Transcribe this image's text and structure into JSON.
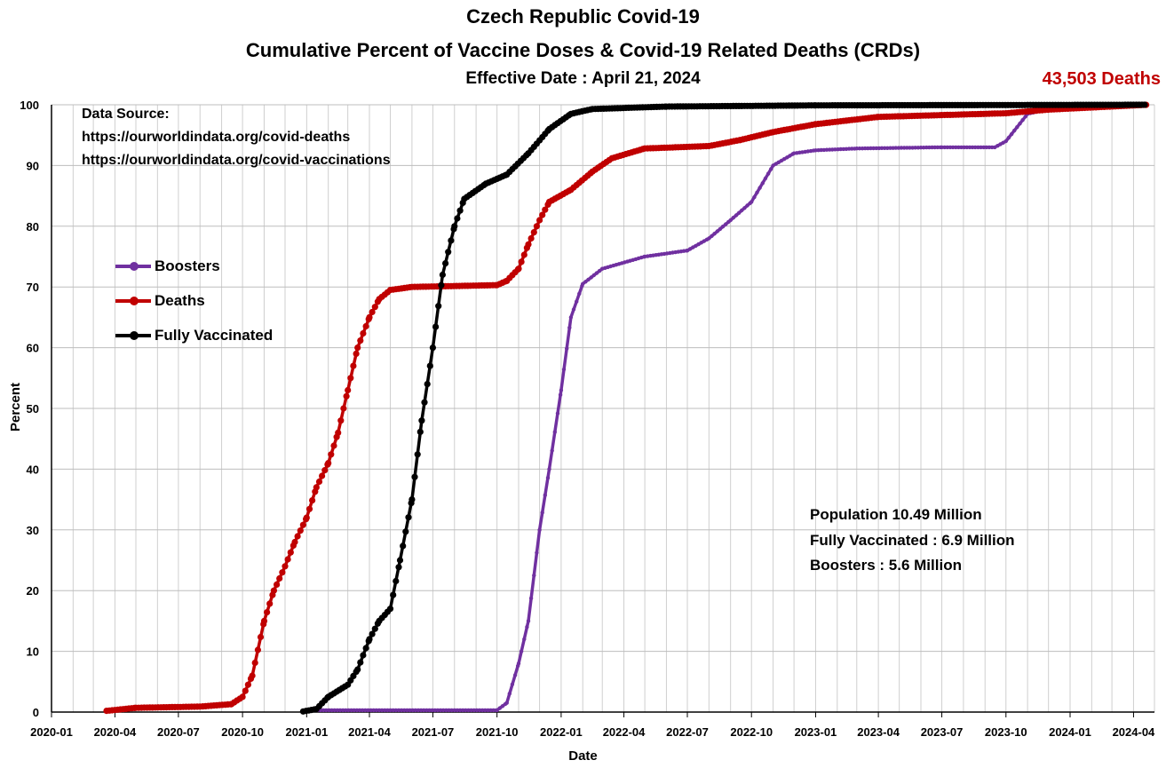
{
  "header": {
    "title_line1": "Czech Republic Covid-19",
    "title_line2": "Cumulative Percent of Vaccine Doses & Covid-19 Related Deaths (CRDs)",
    "title_line3": "Effective Date : April 21, 2024",
    "deaths_total": "43,503 Deaths"
  },
  "source": {
    "heading": "Data Source:",
    "url1": "https://ourworldindata.org/covid-deaths",
    "url2": "https://ourworldindata.org/covid-vaccinations"
  },
  "stats": {
    "population": "Population  10.49 Million",
    "fully_vaccinated": "Fully Vaccinated : 6.9 Million",
    "boosters": "Boosters : 5.6 Million"
  },
  "chart_data": {
    "type": "line",
    "xlabel": "Date",
    "ylabel": "Percent",
    "ylim": [
      0,
      100
    ],
    "yticks": [
      0,
      10,
      20,
      30,
      40,
      50,
      60,
      70,
      80,
      90,
      100
    ],
    "xlim": [
      "2020-01",
      "2024-04"
    ],
    "xticks": [
      "2020-01",
      "2020-04",
      "2020-07",
      "2020-10",
      "2021-01",
      "2021-04",
      "2021-07",
      "2021-10",
      "2022-01",
      "2022-04",
      "2022-07",
      "2022-10",
      "2023-01",
      "2023-04",
      "2023-07",
      "2023-10",
      "2024-01",
      "2024-04"
    ],
    "grid": true,
    "legend_position": "left-center",
    "series": [
      {
        "name": "Boosters",
        "color": "#7030a0",
        "points": [
          [
            "2021-01-01",
            0.3
          ],
          [
            "2021-10-01",
            0.3
          ],
          [
            "2021-10-15",
            1.5
          ],
          [
            "2021-11-01",
            8
          ],
          [
            "2021-11-15",
            15
          ],
          [
            "2021-12-01",
            30
          ],
          [
            "2021-12-15",
            40
          ],
          [
            "2022-01-01",
            53
          ],
          [
            "2022-01-15",
            65
          ],
          [
            "2022-02-01",
            70.5
          ],
          [
            "2022-03-01",
            73
          ],
          [
            "2022-05-01",
            75
          ],
          [
            "2022-07-01",
            76
          ],
          [
            "2022-08-01",
            78
          ],
          [
            "2022-09-01",
            81
          ],
          [
            "2022-10-01",
            84
          ],
          [
            "2022-11-01",
            90
          ],
          [
            "2022-12-01",
            92
          ],
          [
            "2023-01-01",
            92.5
          ],
          [
            "2023-03-01",
            92.8
          ],
          [
            "2023-07-01",
            93
          ],
          [
            "2023-09-15",
            93
          ],
          [
            "2023-10-01",
            94
          ],
          [
            "2023-11-01",
            98.5
          ],
          [
            "2023-12-01",
            99.3
          ],
          [
            "2024-01-01",
            99.8
          ],
          [
            "2024-04-21",
            100
          ]
        ]
      },
      {
        "name": "Deaths",
        "color": "#c00000",
        "points": [
          [
            "2020-03-20",
            0.2
          ],
          [
            "2020-05-01",
            0.7
          ],
          [
            "2020-08-01",
            0.9
          ],
          [
            "2020-09-15",
            1.3
          ],
          [
            "2020-10-01",
            2.5
          ],
          [
            "2020-10-15",
            6
          ],
          [
            "2020-11-01",
            15
          ],
          [
            "2020-11-15",
            20
          ],
          [
            "2020-12-01",
            24
          ],
          [
            "2020-12-15",
            28
          ],
          [
            "2021-01-01",
            32
          ],
          [
            "2021-01-15",
            37
          ],
          [
            "2021-02-01",
            41
          ],
          [
            "2021-02-15",
            46
          ],
          [
            "2021-03-01",
            53
          ],
          [
            "2021-03-15",
            60
          ],
          [
            "2021-04-01",
            65
          ],
          [
            "2021-04-15",
            68
          ],
          [
            "2021-05-01",
            69.5
          ],
          [
            "2021-06-01",
            70
          ],
          [
            "2021-10-01",
            70.3
          ],
          [
            "2021-10-15",
            71
          ],
          [
            "2021-11-01",
            73
          ],
          [
            "2021-11-15",
            77
          ],
          [
            "2021-12-01",
            81
          ],
          [
            "2021-12-15",
            84
          ],
          [
            "2022-01-15",
            86
          ],
          [
            "2022-02-15",
            89
          ],
          [
            "2022-03-15",
            91.2
          ],
          [
            "2022-05-01",
            92.8
          ],
          [
            "2022-08-01",
            93.2
          ],
          [
            "2022-09-15",
            94.2
          ],
          [
            "2022-11-01",
            95.5
          ],
          [
            "2023-01-01",
            96.8
          ],
          [
            "2023-04-01",
            98
          ],
          [
            "2023-07-01",
            98.3
          ],
          [
            "2023-10-01",
            98.6
          ],
          [
            "2023-12-01",
            99.2
          ],
          [
            "2024-04-21",
            100
          ]
        ]
      },
      {
        "name": "Fully Vaccinated",
        "color": "#000000",
        "points": [
          [
            "2020-12-27",
            0.1
          ],
          [
            "2021-01-15",
            0.5
          ],
          [
            "2021-02-01",
            2.5
          ],
          [
            "2021-03-01",
            4.5
          ],
          [
            "2021-03-15",
            7
          ],
          [
            "2021-04-01",
            12
          ],
          [
            "2021-04-15",
            15
          ],
          [
            "2021-05-01",
            17
          ],
          [
            "2021-05-15",
            25
          ],
          [
            "2021-06-01",
            35
          ],
          [
            "2021-06-15",
            48
          ],
          [
            "2021-07-01",
            60
          ],
          [
            "2021-07-15",
            72
          ],
          [
            "2021-08-01",
            80
          ],
          [
            "2021-08-15",
            84.5
          ],
          [
            "2021-09-15",
            87
          ],
          [
            "2021-10-15",
            88.5
          ],
          [
            "2021-11-15",
            92
          ],
          [
            "2021-12-15",
            96
          ],
          [
            "2022-01-15",
            98.5
          ],
          [
            "2022-02-15",
            99.3
          ],
          [
            "2022-06-01",
            99.7
          ],
          [
            "2023-01-01",
            99.9
          ],
          [
            "2024-04-21",
            100
          ]
        ]
      }
    ]
  }
}
